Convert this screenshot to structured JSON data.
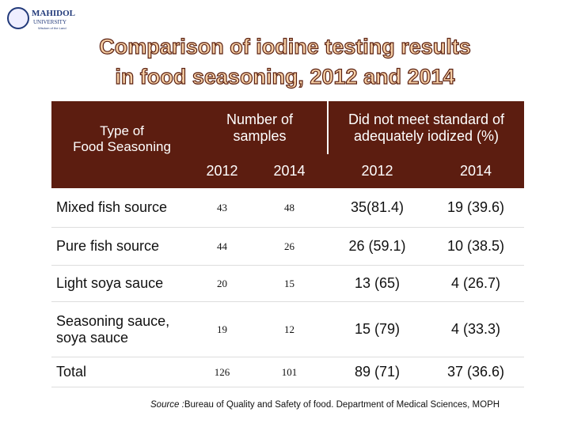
{
  "logo": {
    "name": "MAHIDOL",
    "sub": "UNIVERSITY",
    "motto": "Wisdom of the Land"
  },
  "title": [
    "Comparison of iodine testing results",
    "in food seasoning, 2012 and 2014"
  ],
  "table": {
    "header": {
      "type": [
        "Type of",
        "Food Seasoning"
      ],
      "samples": [
        "Number of",
        "samples"
      ],
      "not_met": [
        "Did not meet standard of",
        "adequately iodized (%)"
      ],
      "years": [
        "2012",
        "2014",
        "2012",
        "2014"
      ]
    },
    "rows": [
      [
        "Mixed fish source",
        "43",
        "48",
        "35(81.4)",
        "19 (39.6)"
      ],
      [
        "Pure fish source",
        "44",
        "26",
        "26 (59.1)",
        "10 (38.5)"
      ],
      [
        "Light soya sauce",
        "20",
        "15",
        "13 (65)",
        "4 (26.7)"
      ],
      [
        "Seasoning sauce, soya sauce",
        "19",
        "12",
        "15 (79)",
        "4 (33.3)"
      ],
      [
        "Total",
        "126",
        "101",
        "89 (71)",
        "37 (36.6)"
      ]
    ]
  },
  "source": {
    "label": "Source :",
    "text": "Bureau of Quality and Safety of food. Department of Medical Sciences, MOPH"
  }
}
